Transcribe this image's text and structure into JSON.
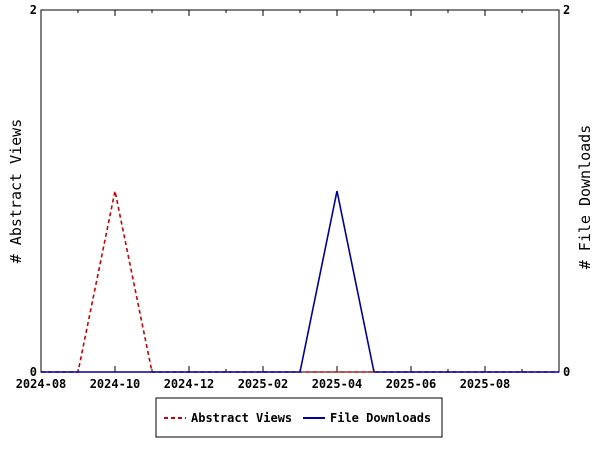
{
  "chart_data": {
    "type": "line",
    "x": [
      "2024-08",
      "2024-09",
      "2024-10",
      "2024-11",
      "2024-12",
      "2025-01",
      "2025-02",
      "2025-03",
      "2025-04",
      "2025-05",
      "2025-06",
      "2025-07",
      "2025-08",
      "2025-09",
      "2025-10"
    ],
    "series": [
      {
        "name": "Abstract Views",
        "axis": "left",
        "color": "#cc0000",
        "dash": true,
        "values": [
          0,
          0,
          1,
          0,
          0,
          0,
          0,
          0,
          0,
          0,
          0,
          0,
          0,
          0,
          0
        ]
      },
      {
        "name": "File Downloads",
        "axis": "right",
        "color": "#000099",
        "dash": false,
        "values": [
          0,
          0,
          0,
          0,
          0,
          0,
          0,
          0,
          1,
          0,
          0,
          0,
          0,
          0,
          0
        ]
      }
    ],
    "x_tick_labels": [
      "2024-08",
      "2024-10",
      "2024-12",
      "2025-02",
      "2025-04",
      "2025-06",
      "2025-08"
    ],
    "ylabel": "# Abstract Views",
    "y2label": "# File Downloads",
    "ylim": [
      0,
      2
    ],
    "y2lim": [
      0,
      2
    ],
    "y_tick_labels": [
      "0",
      "2"
    ],
    "y2_tick_labels": [
      "0",
      "2"
    ],
    "grid": false,
    "legend": "bottom-center"
  }
}
